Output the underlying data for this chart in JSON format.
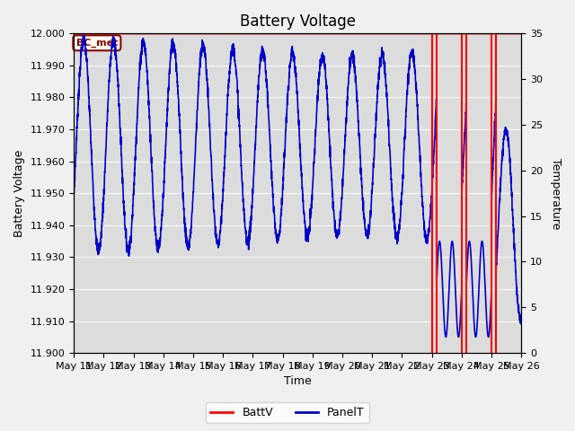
{
  "title": "Battery Voltage",
  "xlabel": "Time",
  "ylabel_left": "Battery Voltage",
  "ylabel_right": "Temperature",
  "ylim_left": [
    11.9,
    12.0
  ],
  "ylim_right": [
    0,
    35
  ],
  "yticks_left": [
    11.9,
    11.91,
    11.92,
    11.93,
    11.94,
    11.95,
    11.96,
    11.97,
    11.98,
    11.99,
    12.0
  ],
  "yticks_right": [
    0,
    5,
    10,
    15,
    20,
    25,
    30,
    35
  ],
  "fig_bg_color": "#f0f0f0",
  "plot_bg_color": "#dcdcdc",
  "annotation_label": "BC_met",
  "annotation_color": "#8B0000",
  "annotation_bg": "#fffff0",
  "batt_color": "#ff0000",
  "panel_color": "#0000cc",
  "legend_batt": "BattV",
  "legend_panel": "PanelT",
  "x_tick_labels": [
    "May 11",
    "May 12",
    "May 13",
    "May 14",
    "May 15",
    "May 16",
    "May 17",
    "May 18",
    "May 19",
    "May 20",
    "May 21",
    "May 22",
    "May 23",
    "May 24",
    "May 25",
    "May 26"
  ],
  "red_vline_pairs": [
    [
      12.0,
      12.15
    ],
    [
      13.0,
      13.15
    ],
    [
      14.0,
      14.15
    ]
  ],
  "title_fontsize": 12,
  "axis_label_fontsize": 9,
  "tick_fontsize": 8
}
